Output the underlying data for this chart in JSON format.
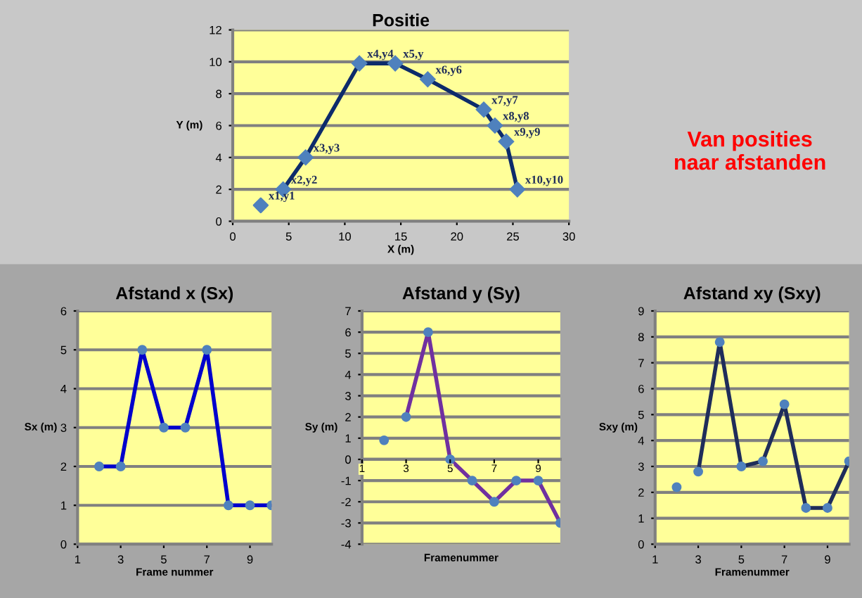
{
  "chart_data": [
    {
      "type": "line",
      "title": "Positie",
      "xlabel": "X (m)",
      "ylabel": "Y (m)",
      "xlim": [
        0,
        30
      ],
      "xticks": [
        0,
        5,
        10,
        15,
        20,
        25,
        30
      ],
      "ylim": [
        0,
        12
      ],
      "yticks": [
        0,
        2,
        4,
        6,
        8,
        10,
        12
      ],
      "grid": "y",
      "marker": "diamond",
      "line_style": "solid",
      "series": [
        {
          "type": "scatter",
          "color": "#4f81bd",
          "x": [
            2.5
          ],
          "values": [
            1
          ]
        },
        {
          "type": "line",
          "color": "#0d2b6b",
          "x": [
            4.5,
            6.5,
            11.3,
            14.5,
            17.4,
            22.4,
            23.4,
            24.4,
            25.4
          ],
          "values": [
            2,
            4,
            9.9,
            9.9,
            8.9,
            7,
            6,
            5,
            2
          ]
        }
      ],
      "annotations": [
        {
          "text": "x1,y1",
          "x": 2.5,
          "y": 1
        },
        {
          "text": "x2,y2",
          "x": 4.5,
          "y": 2
        },
        {
          "text": "x3,y3",
          "x": 6.5,
          "y": 4
        },
        {
          "text": "x4,y4",
          "x": 11.3,
          "y": 9.9
        },
        {
          "text": "x5,y",
          "x": 14.5,
          "y": 9.9
        },
        {
          "text": "x6,y6",
          "x": 17.4,
          "y": 8.9
        },
        {
          "text": "x7,y7",
          "x": 22.4,
          "y": 7
        },
        {
          "text": "x8,y8",
          "x": 23.4,
          "y": 6
        },
        {
          "text": "x9,y9",
          "x": 24.4,
          "y": 5
        },
        {
          "text": "x10,y10",
          "x": 25.4,
          "y": 2
        },
        "Van posities\nnaar afstanden"
      ]
    },
    {
      "type": "line",
      "title": "Afstand x (Sx)",
      "xlabel": "Frame nummer",
      "ylabel": "Sx (m)",
      "xlim": [
        1,
        10
      ],
      "xticks": [
        1,
        3,
        5,
        7,
        9
      ],
      "ylim": [
        0,
        6
      ],
      "yticks": [
        0,
        1,
        2,
        3,
        4,
        5,
        6
      ],
      "grid": "y",
      "marker": "circle",
      "line_style": "solid",
      "series": [
        {
          "color": "#0000cc",
          "x": [
            2,
            3,
            4,
            5,
            6,
            7,
            8,
            9,
            10
          ],
          "values": [
            2,
            2,
            5,
            3,
            3,
            5,
            1,
            1,
            1
          ]
        }
      ]
    },
    {
      "type": "line",
      "title": "Afstand y (Sy)",
      "xlabel": "Framenummer",
      "ylabel": "Sy (m)",
      "xlim": [
        1,
        10
      ],
      "xticks": [
        1,
        3,
        5,
        7,
        9
      ],
      "ylim": [
        -4,
        7
      ],
      "yticks": [
        -4,
        -3,
        -2,
        -1,
        0,
        1,
        2,
        3,
        4,
        5,
        6,
        7
      ],
      "grid": "y",
      "marker": "circle",
      "line_style": "solid",
      "series": [
        {
          "type": "scatter",
          "color": "#4f81bd",
          "x": [
            2
          ],
          "values": [
            0.9
          ]
        },
        {
          "type": "line",
          "color": "#7030a0",
          "x": [
            3,
            4,
            5,
            6,
            7,
            8,
            9,
            10
          ],
          "values": [
            2,
            6,
            0,
            -1,
            -2,
            -1,
            -1,
            -3
          ]
        }
      ]
    },
    {
      "type": "line",
      "title": "Afstand xy (Sxy)",
      "xlabel": "Framenummer",
      "ylabel": "Sxy (m)",
      "xlim": [
        1,
        10
      ],
      "xticks": [
        1,
        3,
        5,
        7,
        9
      ],
      "ylim": [
        0,
        9
      ],
      "yticks": [
        0,
        1,
        2,
        3,
        4,
        5,
        6,
        7,
        8,
        9
      ],
      "grid": "y",
      "marker": "circle",
      "line_style": "solid",
      "series": [
        {
          "type": "scatter",
          "color": "#4f81bd",
          "x": [
            2
          ],
          "values": [
            2.2
          ]
        },
        {
          "type": "line",
          "color": "#1f2d5a",
          "x": [
            3,
            4,
            5,
            6,
            7,
            8,
            9,
            10
          ],
          "values": [
            2.8,
            7.8,
            3.0,
            3.2,
            5.4,
            1.4,
            1.4,
            3.2
          ]
        }
      ]
    }
  ]
}
